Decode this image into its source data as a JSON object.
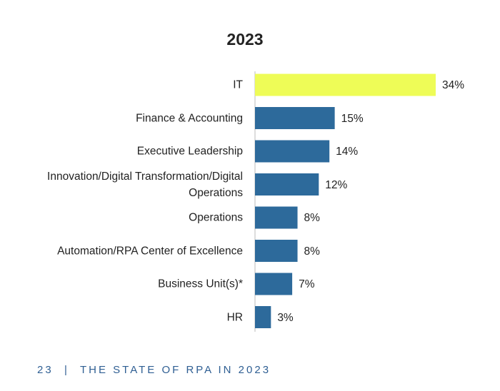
{
  "chart_data": {
    "type": "hbar",
    "title": "2023",
    "categories": [
      "IT",
      "Finance & Accounting",
      "Executive Leadership",
      "Innovation/Digital Transformation/Digital Operations",
      "Operations",
      "Automation/RPA Center of Excellence",
      "Business Unit(s)*",
      "HR"
    ],
    "values": [
      34,
      15,
      14,
      12,
      8,
      8,
      7,
      3
    ],
    "value_labels": [
      "34%",
      "15%",
      "14%",
      "12%",
      "8%",
      "8%",
      "7%",
      "3%"
    ],
    "colors": [
      "#eefc57",
      "#2d6a9b",
      "#2d6a9b",
      "#2d6a9b",
      "#2d6a9b",
      "#2d6a9b",
      "#2d6a9b",
      "#2d6a9b"
    ]
  },
  "footer": {
    "page": "23",
    "separator": "|",
    "title": "THE STATE OF RPA IN 2023"
  }
}
